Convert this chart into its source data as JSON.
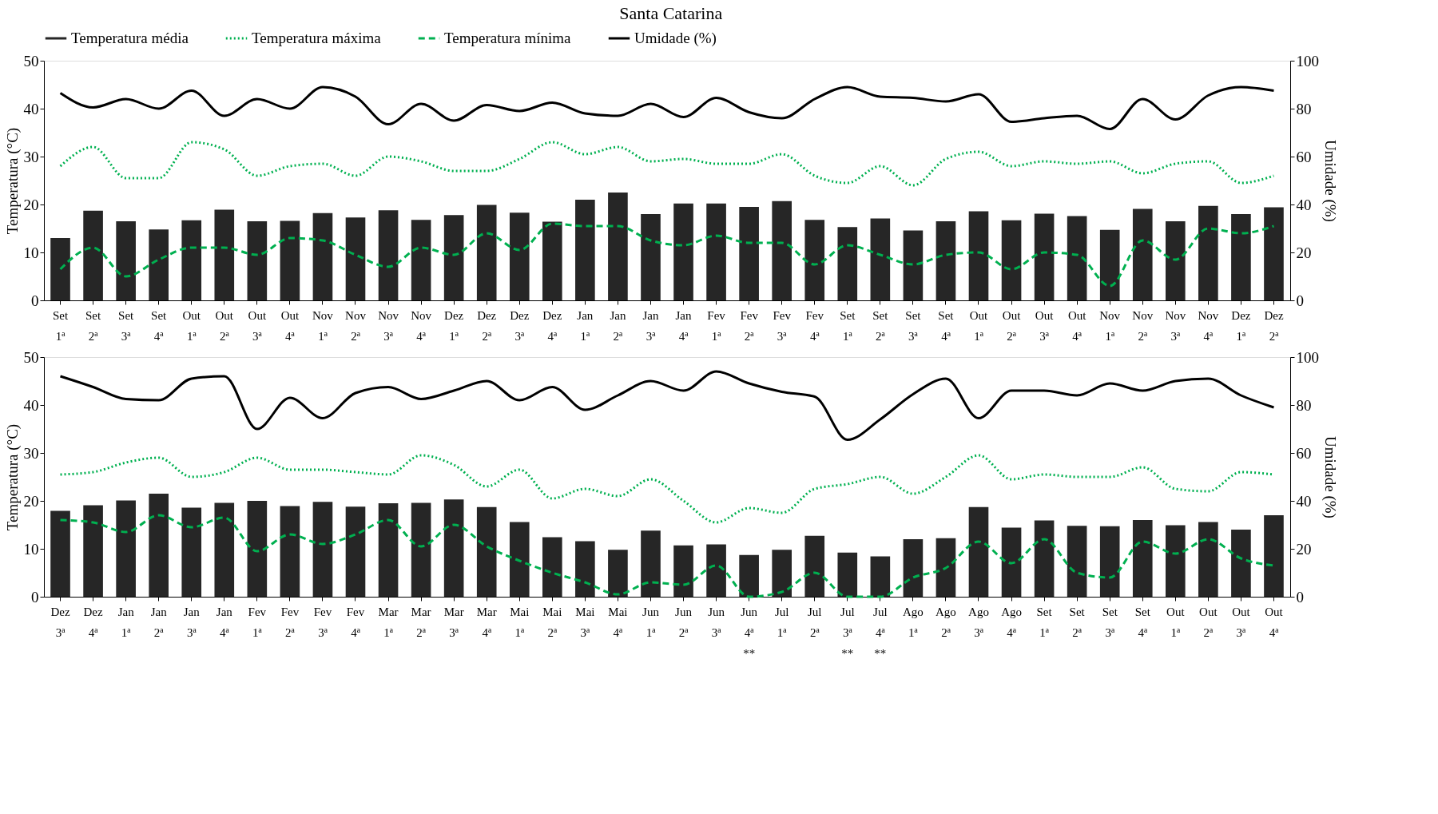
{
  "chart_data": [
    {
      "type": "bar",
      "title": "Santa Catarina",
      "legend": "top",
      "grid": false,
      "ylabel": "Temperatura (°C)",
      "y2label": "Umidade (%)",
      "ylim": [
        0,
        50
      ],
      "yticks": [
        0,
        10,
        20,
        30,
        40,
        50
      ],
      "y2lim": [
        0,
        100
      ],
      "y2ticks": [
        0,
        20,
        40,
        60,
        80,
        100
      ],
      "categories": [
        "Set 1ª",
        "Set 2ª",
        "Set 3ª",
        "Set 4ª",
        "Out 1ª",
        "Out 2ª",
        "Out 3ª",
        "Out 4ª",
        "Nov 1ª",
        "Nov 2ª",
        "Nov 3ª",
        "Nov 4ª",
        "Dez 1ª",
        "Dez 2ª",
        "Dez 3ª",
        "Dez 4ª",
        "Jan 1ª",
        "Jan 2ª",
        "Jan 3ª",
        "Jan 4ª",
        "Fev 1ª",
        "Fev 2ª",
        "Fev 3ª",
        "Fev 4ª",
        "Set 1ª",
        "Set 2ª",
        "Set 3ª",
        "Set 4ª",
        "Out 1ª",
        "Out 2ª",
        "Out 3ª",
        "Out 4ª",
        "Nov 1ª",
        "Nov 2ª",
        "Nov 3ª",
        "Nov 4ª",
        "Dez 1ª",
        "Dez 2ª"
      ],
      "series": [
        {
          "name": "Temperatura média",
          "color": "#262626",
          "values": [
            13,
            18.7,
            16.5,
            14.8,
            16.7,
            18.9,
            16.5,
            16.6,
            18.2,
            17.3,
            18.8,
            16.8,
            17.8,
            19.9,
            18.3,
            16.4,
            21,
            22.5,
            18,
            20.2,
            20.2,
            19.5,
            20.7,
            16.8,
            15.3,
            17.1,
            14.6,
            16.5,
            18.6,
            16.7,
            18.1,
            17.6,
            14.7,
            19.1,
            16.5,
            19.7,
            18,
            19.4
          ]
        },
        {
          "name": "Temperatura máxima",
          "type": "line",
          "line_style": "dotted",
          "color": "#00b050",
          "values": [
            28,
            32,
            25.5,
            25.5,
            33,
            31.5,
            26,
            28,
            28.5,
            26,
            30,
            29,
            27,
            27,
            29.5,
            33,
            30.5,
            32,
            29,
            29.5,
            28.5,
            28.5,
            30.5,
            26,
            24.5,
            28,
            24,
            29.5,
            31,
            28,
            29,
            28.5,
            29,
            26.5,
            28.5,
            29,
            24.5,
            26
          ]
        },
        {
          "name": "Temperatura mínima",
          "type": "line",
          "line_style": "dashed",
          "color": "#00b050",
          "values": [
            6.5,
            11,
            5,
            8.5,
            11,
            11,
            9.5,
            13,
            12.5,
            9.5,
            7,
            11,
            9.5,
            14,
            10.5,
            16,
            15.5,
            15.5,
            12.5,
            11.5,
            13.5,
            12,
            12,
            7.5,
            11.5,
            9.5,
            7.5,
            9.5,
            10,
            6.5,
            10,
            9.5,
            3,
            12.5,
            8.5,
            15,
            14,
            15.5
          ]
        },
        {
          "name": "Umidade (%)",
          "type": "line",
          "line_style": "solid",
          "axis": "y2",
          "color": "#000000",
          "values": [
            86.5,
            80.5,
            84,
            80,
            87.5,
            77,
            84,
            80,
            89,
            85,
            73.5,
            82,
            75,
            81.5,
            79,
            82.5,
            78,
            77,
            82,
            76.5,
            84.5,
            78.5,
            76,
            84,
            89,
            85,
            84.5,
            83,
            86,
            74.5,
            76,
            77,
            71.5,
            84,
            75.5,
            85.5,
            89,
            87.5
          ]
        }
      ]
    },
    {
      "type": "bar",
      "grid": false,
      "ylabel": "Temperatura (°C)",
      "y2label": "Umidade (%)",
      "ylim": [
        0,
        50
      ],
      "yticks": [
        0,
        10,
        20,
        30,
        40,
        50
      ],
      "y2lim": [
        0,
        100
      ],
      "y2ticks": [
        0,
        20,
        40,
        60,
        80,
        100
      ],
      "categories": [
        "Dez 3ª",
        "Dez 4ª",
        "Jan 1ª",
        "Jan 2ª",
        "Jan 3ª",
        "Jan 4ª",
        "Fev 1ª",
        "Fev 2ª",
        "Fev 3ª",
        "Fev 4ª",
        "Mar 1ª",
        "Mar 2ª",
        "Mar 3ª",
        "Mar 4ª",
        "Mai 1ª",
        "Mai 2ª",
        "Mai 3ª",
        "Mai 4ª",
        "Jun 1ª",
        "Jun 2ª",
        "Jun 3ª",
        "Jun 4ª **",
        "Jul 1ª",
        "Jul 2ª",
        "Jul 3ª **",
        "Jul 4ª **",
        "Ago 1ª",
        "Ago 2ª",
        "Ago 3ª",
        "Ago 4ª",
        "Set 1ª",
        "Set 2ª",
        "Set 3ª",
        "Set 4ª",
        "Out 1ª",
        "Out 2ª",
        "Out 3ª",
        "Out 4ª"
      ],
      "series": [
        {
          "color": "#262626",
          "values": [
            17.9,
            19.1,
            20.1,
            21.5,
            18.6,
            19.6,
            20,
            18.9,
            19.8,
            18.8,
            19.5,
            19.6,
            20.3,
            18.7,
            15.6,
            12.4,
            11.6,
            9.8,
            13.8,
            10.7,
            10.9,
            8.7,
            9.8,
            12.7,
            9.2,
            8.4,
            12,
            12.2,
            18.7,
            14.4,
            15.9,
            14.8,
            14.7,
            16,
            14.9,
            15.6,
            14,
            17
          ]
        },
        {
          "type": "line",
          "line_style": "dotted",
          "color": "#00b050",
          "values": [
            25.5,
            26,
            28,
            29,
            25,
            26,
            29,
            26.5,
            26.5,
            26,
            25.5,
            29.5,
            27.5,
            23,
            26.5,
            20.5,
            22.5,
            21,
            24.5,
            20,
            15.5,
            18.5,
            17.5,
            22.5,
            23.5,
            25,
            21.5,
            25,
            29.5,
            24.5,
            25.5,
            25,
            25,
            27,
            22.5,
            22,
            26,
            25.5
          ]
        },
        {
          "type": "line",
          "line_style": "dashed",
          "color": "#00b050",
          "values": [
            16,
            15.5,
            13.5,
            17,
            14.5,
            16.5,
            9.5,
            13,
            11,
            13,
            16,
            10.5,
            15,
            10.5,
            7.5,
            5,
            3,
            0.5,
            3,
            2.5,
            6.5,
            0,
            1,
            5,
            0,
            0,
            4,
            6,
            11.5,
            7,
            12,
            5,
            4,
            11.5,
            9,
            12,
            8,
            6.5
          ]
        },
        {
          "type": "line",
          "line_style": "solid",
          "axis": "y2",
          "color": "#000000",
          "values": [
            92,
            87.5,
            82.5,
            82,
            91,
            92,
            70,
            83,
            74.5,
            85,
            87.5,
            82.5,
            86,
            90,
            82,
            87.5,
            78,
            84,
            90,
            86,
            94,
            89,
            85.5,
            83.5,
            65.5,
            74,
            84.5,
            91,
            74.5,
            86,
            86,
            84,
            89,
            86,
            90,
            91,
            84,
            79
          ]
        }
      ]
    }
  ]
}
